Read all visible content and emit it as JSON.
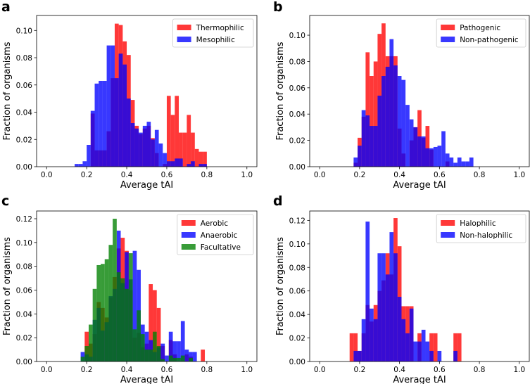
{
  "chart_data": [
    {
      "panel_label": "a",
      "type": "bar",
      "xlabel": "Average tAI",
      "ylabel": "Fraction of organisms",
      "xlim": [
        -0.05,
        1.05
      ],
      "ylim": [
        0,
        0.111
      ],
      "bin_width": 0.02,
      "xticks": [
        "0.0",
        "0.2",
        "0.4",
        "0.6",
        "0.8",
        "1.0"
      ],
      "yticks": [
        "0.00",
        "0.02",
        "0.04",
        "0.06",
        "0.08",
        "0.10"
      ],
      "legend": "top-right",
      "series": [
        {
          "name": "Thermophilic",
          "color": "#ff0000",
          "bin_start": 0.22,
          "values": [
            0.039,
            0.012,
            0.012,
            0.012,
            0.026,
            0.065,
            0.105,
            0.104,
            0.092,
            0.082,
            0.049,
            0.03,
            0.024,
            0.028,
            0.03,
            0.021,
            0.01,
            0.0,
            0.002,
            0.052,
            0.038,
            0.052,
            0.025,
            0.025,
            0.038,
            0.025,
            0.013,
            0.011,
            0.011
          ]
        },
        {
          "name": "Mesophilic",
          "color": "#0000ff",
          "bin_start": 0.14,
          "values": [
            0.002,
            0.002,
            0.004,
            0.016,
            0.041,
            0.061,
            0.063,
            0.063,
            0.089,
            0.089,
            0.065,
            0.083,
            0.075,
            0.05,
            0.032,
            0.028,
            0.025,
            0.03,
            0.033,
            0.02,
            0.027,
            0.017,
            0.01,
            0.004,
            0.004,
            0.006,
            0.006,
            0.0,
            0.002,
            0.004,
            0.0,
            0.002,
            0.002
          ]
        }
      ]
    },
    {
      "panel_label": "b",
      "type": "bar",
      "xlabel": "Average tAI",
      "ylabel": "Fraction of organisms",
      "xlim": [
        -0.05,
        1.05
      ],
      "ylim": [
        0,
        0.115
      ],
      "bin_width": 0.02,
      "xticks": [
        "0.0",
        "0.2",
        "0.4",
        "0.6",
        "0.8",
        "1.0"
      ],
      "yticks": [
        "0.00",
        "0.02",
        "0.04",
        "0.06",
        "0.08",
        "0.10"
      ],
      "legend": "top-right",
      "series": [
        {
          "name": "Pathogenic",
          "color": "#ff0000",
          "bin_start": 0.17,
          "values": [
            0.003,
            0.022,
            0.038,
            0.087,
            0.069,
            0.08,
            0.101,
            0.109,
            0.084,
            0.084,
            0.084,
            0.029,
            0.01,
            0.0,
            0.02,
            0.03,
            0.043,
            0.022,
            0.031,
            0.013,
            0.0,
            0.0,
            0.0,
            0.004
          ]
        },
        {
          "name": "Non-pathogenic",
          "color": "#0000ff",
          "bin_start": 0.17,
          "values": [
            0.007,
            0.016,
            0.043,
            0.039,
            0.031,
            0.031,
            0.054,
            0.069,
            0.076,
            0.097,
            0.077,
            0.069,
            0.066,
            0.047,
            0.036,
            0.03,
            0.023,
            0.023,
            0.014,
            0.014,
            0.015,
            0.016,
            0.027,
            0.01,
            0.007,
            0.003,
            0.007,
            0.004,
            0.004,
            0.007
          ]
        }
      ]
    },
    {
      "panel_label": "c",
      "type": "bar",
      "xlabel": "Average tAI",
      "ylabel": "Fraction of organisms",
      "xlim": [
        -0.05,
        1.05
      ],
      "ylim": [
        0,
        0.1265
      ],
      "bin_width": 0.02,
      "xticks": [
        "0.0",
        "0.2",
        "0.4",
        "0.6",
        "0.8",
        "1.0"
      ],
      "yticks": [
        "0.00",
        "0.02",
        "0.04",
        "0.06",
        "0.08",
        "0.10",
        "0.12"
      ],
      "legend": "top-right",
      "series": [
        {
          "name": "Aerobic",
          "color": "#ff0000",
          "bin_start": 0.17,
          "values": [
            0.0,
            0.025,
            0.015,
            0.023,
            0.05,
            0.045,
            0.037,
            0.054,
            0.071,
            0.095,
            0.104,
            0.093,
            0.06,
            0.02,
            0.024,
            0.012,
            0.015,
            0.065,
            0.06,
            0.045,
            0.013,
            0.0,
            0.018,
            0.006,
            0.0,
            0.0,
            0.006,
            0.004,
            0.0,
            0.0,
            0.01
          ]
        },
        {
          "name": "Anaerobic",
          "color": "#0000ff",
          "bin_start": 0.17,
          "values": [
            0.008,
            0.006,
            0.004,
            0.035,
            0.045,
            0.026,
            0.033,
            0.055,
            0.061,
            0.11,
            0.066,
            0.092,
            0.069,
            0.093,
            0.077,
            0.031,
            0.025,
            0.018,
            0.008,
            0.012,
            0.015,
            0.005,
            0.025,
            0.017,
            0.017,
            0.034,
            0.01,
            0.008,
            0.008
          ]
        },
        {
          "name": "Facultative",
          "color": "#008000",
          "bin_start": 0.17,
          "values": [
            0.004,
            0.013,
            0.031,
            0.061,
            0.081,
            0.082,
            0.086,
            0.098,
            0.12,
            0.075,
            0.07,
            0.061,
            0.091,
            0.027,
            0.043,
            0.023,
            0.01,
            0.01,
            0.025,
            0.013,
            0.002,
            0.0,
            0.005,
            0.003,
            0.003,
            0.005,
            0.0,
            0.003
          ]
        }
      ]
    },
    {
      "panel_label": "d",
      "type": "bar",
      "xlabel": "Average tAI",
      "ylabel": "Fraction of organisms",
      "xlim": [
        -0.05,
        1.05
      ],
      "ylim": [
        0,
        0.128
      ],
      "bin_width": 0.02,
      "xticks": [
        "0.0",
        "0.2",
        "0.4",
        "0.6",
        "0.8",
        "1.0"
      ],
      "yticks": [
        "0.00",
        "0.02",
        "0.04",
        "0.06",
        "0.08",
        "0.10",
        "0.12"
      ],
      "legend": "top-right",
      "series": [
        {
          "name": "Halophilic",
          "color": "#ff0000",
          "bin_start": 0.15,
          "values": [
            0.024,
            0.024,
            0.009,
            0.024,
            0.048,
            0.034,
            0.048,
            0.06,
            0.069,
            0.092,
            0.074,
            0.122,
            0.098,
            0.047,
            0.047,
            0.047,
            0.0,
            0.024,
            0.0,
            0.0,
            0.024,
            0.024,
            0.0,
            0.0,
            0.0,
            0.0,
            0.024,
            0.024
          ]
        },
        {
          "name": "Non-halophilic",
          "color": "#0000ff",
          "bin_start": 0.15,
          "values": [
            0.0,
            0.009,
            0.009,
            0.036,
            0.119,
            0.045,
            0.036,
            0.092,
            0.092,
            0.074,
            0.11,
            0.092,
            0.055,
            0.036,
            0.024,
            0.045,
            0.017,
            0.017,
            0.027,
            0.017,
            0.009,
            0.0,
            0.009,
            0.0,
            0.0,
            0.0,
            0.009
          ]
        }
      ]
    }
  ]
}
